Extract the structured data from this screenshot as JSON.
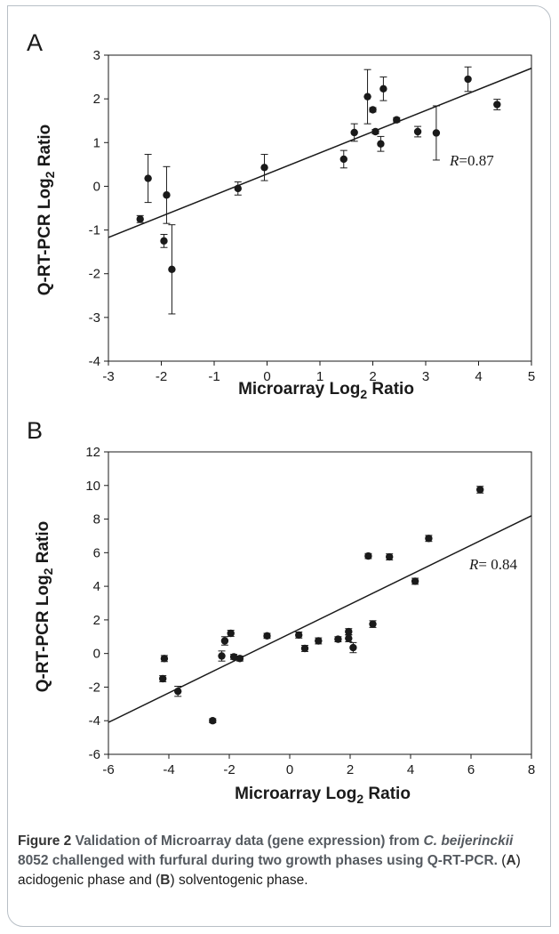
{
  "chart_data": [
    {
      "panel": "A",
      "type": "scatter",
      "xlabel": "Microarray Log",
      "xlabel_sub": "2",
      "xlabel_tail": " Ratio",
      "ylabel": "Q-RT-PCR Log",
      "ylabel_sub": "2",
      "ylabel_tail": " Ratio",
      "xlim": [
        -3,
        5
      ],
      "ylim": [
        -4,
        3
      ],
      "x_ticks": [
        -3,
        -2,
        -1,
        0,
        1,
        2,
        3,
        4,
        5
      ],
      "y_ticks": [
        -4,
        -3,
        -2,
        -1,
        0,
        1,
        2,
        3
      ],
      "y_tick_labels": [
        "-4",
        "-3",
        "-2",
        "-1",
        "0",
        "1",
        "2",
        "3"
      ],
      "r_label": "R",
      "r_value": "=0.87",
      "fit_line": [
        [
          -3,
          -1.17
        ],
        [
          5,
          2.7
        ]
      ],
      "points": [
        {
          "x": -2.4,
          "y": -0.75,
          "err": 0.08
        },
        {
          "x": -2.25,
          "y": 0.18,
          "err": 0.55
        },
        {
          "x": -1.95,
          "y": -1.25,
          "err": 0.15
        },
        {
          "x": -1.9,
          "y": -0.2,
          "err": 0.65
        },
        {
          "x": -1.8,
          "y": -1.9,
          "err": 1.02
        },
        {
          "x": -0.55,
          "y": -0.05,
          "err": 0.15
        },
        {
          "x": -0.05,
          "y": 0.43,
          "err": 0.3
        },
        {
          "x": 1.45,
          "y": 0.62,
          "err": 0.2
        },
        {
          "x": 1.65,
          "y": 1.23,
          "err": 0.2
        },
        {
          "x": 1.9,
          "y": 2.05,
          "err": 0.62
        },
        {
          "x": 2.0,
          "y": 1.75,
          "err": 0.05
        },
        {
          "x": 2.05,
          "y": 1.25,
          "err": 0.05
        },
        {
          "x": 2.15,
          "y": 0.97,
          "err": 0.17
        },
        {
          "x": 2.2,
          "y": 2.23,
          "err": 0.27
        },
        {
          "x": 2.45,
          "y": 1.52,
          "err": 0.05
        },
        {
          "x": 2.85,
          "y": 1.25,
          "err": 0.12
        },
        {
          "x": 3.2,
          "y": 1.22,
          "err": 0.62
        },
        {
          "x": 3.8,
          "y": 2.45,
          "err": 0.28
        },
        {
          "x": 4.35,
          "y": 1.87,
          "err": 0.12
        }
      ]
    },
    {
      "panel": "B",
      "type": "scatter",
      "xlabel": "Microarray Log",
      "xlabel_sub": "2",
      "xlabel_tail": " Ratio",
      "ylabel": "Q-RT-PCR Log",
      "ylabel_sub": "2",
      "ylabel_tail": " Ratio",
      "xlim": [
        -6,
        8
      ],
      "ylim": [
        -6,
        12
      ],
      "x_ticks": [
        -6,
        -4,
        -2,
        0,
        2,
        4,
        6,
        8
      ],
      "y_ticks": [
        -6,
        -4,
        -2,
        0,
        2,
        4,
        6,
        8,
        10,
        12
      ],
      "y_tick_labels": [
        "-6",
        "-4",
        "-2",
        "0",
        "2",
        "4",
        "6",
        "8",
        "10",
        "12"
      ],
      "r_label": "R",
      "r_value": "= 0.84",
      "fit_line": [
        [
          -6,
          -4.1
        ],
        [
          8,
          8.2
        ]
      ],
      "points": [
        {
          "x": -4.15,
          "y": -0.3,
          "err": 0.18
        },
        {
          "x": -4.2,
          "y": -1.5,
          "err": 0.18
        },
        {
          "x": -3.7,
          "y": -2.25,
          "err": 0.3
        },
        {
          "x": -2.55,
          "y": -4.0,
          "err": 0.12
        },
        {
          "x": -2.25,
          "y": -0.15,
          "err": 0.3
        },
        {
          "x": -2.15,
          "y": 0.75,
          "err": 0.25
        },
        {
          "x": -1.95,
          "y": 1.2,
          "err": 0.18
        },
        {
          "x": -1.85,
          "y": -0.2,
          "err": 0.15
        },
        {
          "x": -1.65,
          "y": -0.3,
          "err": 0.15
        },
        {
          "x": -0.75,
          "y": 1.05,
          "err": 0.15
        },
        {
          "x": 0.3,
          "y": 1.1,
          "err": 0.18
        },
        {
          "x": 0.5,
          "y": 0.3,
          "err": 0.18
        },
        {
          "x": 0.95,
          "y": 0.75,
          "err": 0.18
        },
        {
          "x": 1.6,
          "y": 0.85,
          "err": 0.15
        },
        {
          "x": 1.95,
          "y": 1.3,
          "err": 0.18
        },
        {
          "x": 1.95,
          "y": 0.9,
          "err": 0.2
        },
        {
          "x": 2.1,
          "y": 0.35,
          "err": 0.3
        },
        {
          "x": 2.6,
          "y": 5.8,
          "err": 0.15
        },
        {
          "x": 2.75,
          "y": 1.75,
          "err": 0.2
        },
        {
          "x": 3.3,
          "y": 5.75,
          "err": 0.18
        },
        {
          "x": 4.15,
          "y": 4.3,
          "err": 0.18
        },
        {
          "x": 4.6,
          "y": 6.85,
          "err": 0.18
        },
        {
          "x": 6.3,
          "y": 9.75,
          "err": 0.2
        }
      ]
    }
  ],
  "caption": {
    "fig_label": "Figure 2",
    "text_bold_1": " Validation of Microarray data (gene expression) from ",
    "organism": "C. beijerinckii",
    "text_bold_2": " 8052 challenged with furfural during two growth phases using Q-RT-PCR.",
    "paren_open_a": " (",
    "letter_a": "A",
    "text_a": ") acidogenic phase and (",
    "letter_b": "B",
    "text_b": ") solventogenic phase."
  }
}
